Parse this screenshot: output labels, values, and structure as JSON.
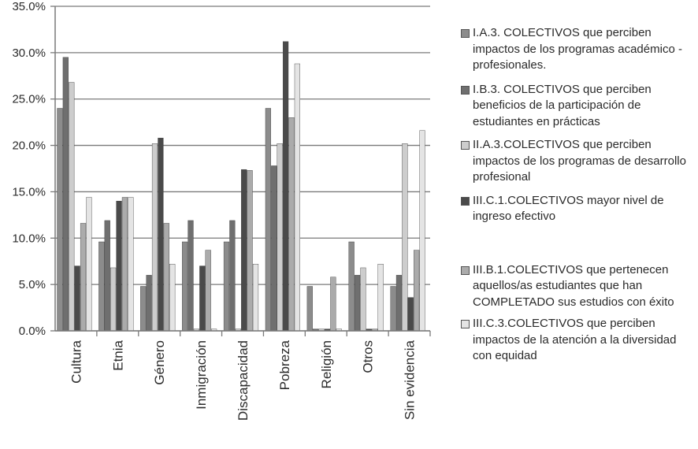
{
  "chart_data": {
    "type": "bar",
    "categories": [
      "Cultura",
      "Etnia",
      "Género",
      "Inmigración",
      "Discapacidad",
      "Pobreza",
      "Religión",
      "Otros",
      "Sin evidencia"
    ],
    "y_ticks": [
      "0.0%",
      "5.0%",
      "10.0%",
      "15.0%",
      "20.0%",
      "25.0%",
      "30.0%",
      "35.0%"
    ],
    "ylim": [
      0,
      35
    ],
    "grid": true,
    "legend_position": "right",
    "series": [
      {
        "name": "I.A.3. COLECTIVOS que perciben impactos de los programas académico - profesionales.",
        "color": "#8c8c8c",
        "values": [
          24.0,
          9.6,
          4.8,
          9.6,
          9.6,
          24.0,
          4.8,
          9.6,
          4.8
        ]
      },
      {
        "name": "I.B.3. COLECTIVOS que perciben beneficios de la participación de estudiantes en prácticas",
        "color": "#6f6f6f",
        "values": [
          29.5,
          11.9,
          6.0,
          11.9,
          11.9,
          17.8,
          0.2,
          6.0,
          6.0
        ]
      },
      {
        "name": "II.A.3.COLECTIVOS que perciben impactos de los programas de desarrollo profesional",
        "color": "#cdcdcd",
        "values": [
          26.8,
          6.8,
          20.2,
          0.2,
          0.2,
          20.2,
          0.2,
          6.8,
          20.2
        ]
      },
      {
        "name": "III.C.1.COLECTIVOS mayor nivel de ingreso efectivo",
        "color": "#4a4a4a",
        "values": [
          7.0,
          14.0,
          20.8,
          7.0,
          17.4,
          31.2,
          0.2,
          0.2,
          3.6
        ]
      },
      {
        "name": "III.B.1.COLECTIVOS que pertenecen aquellos/as estudiantes que han COMPLETADO sus estudios con éxito",
        "color": "#ababab",
        "values": [
          11.6,
          14.4,
          11.6,
          8.7,
          17.3,
          23.0,
          5.8,
          0.2,
          8.7
        ]
      },
      {
        "name": "III.C.3.COLECTIVOS que perciben impactos de la atención a la diversidad con equidad",
        "color": "#e4e4e4",
        "values": [
          14.4,
          14.4,
          7.2,
          0.2,
          7.2,
          28.8,
          0.2,
          7.2,
          21.6
        ]
      }
    ]
  }
}
